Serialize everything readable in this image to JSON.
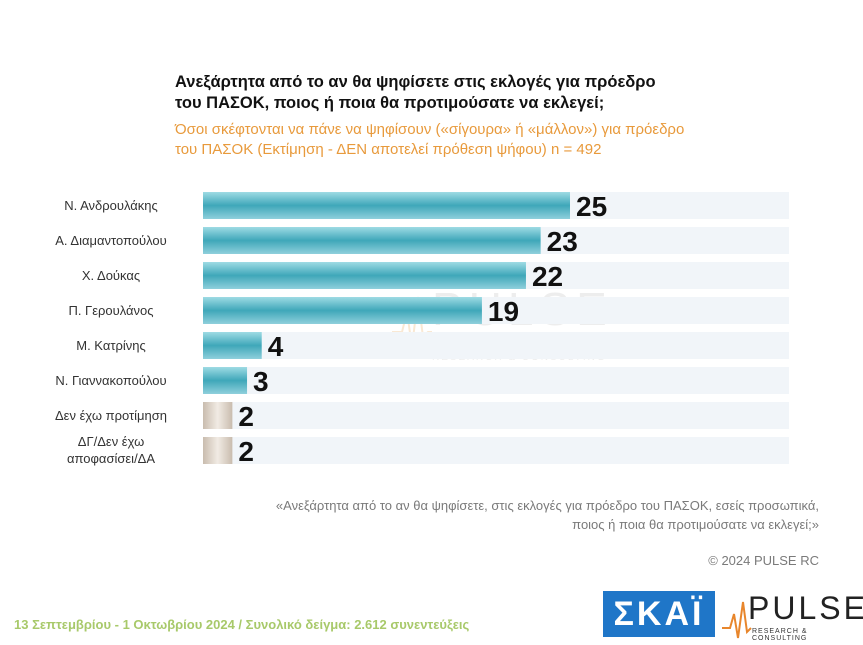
{
  "title": "Ανεξάρτητα από το αν θα ψηφίσετε στις εκλογές για πρόεδρο\nτου ΠΑΣΟΚ, ποιος ή ποια θα προτιμούσατε να εκλεγεί;",
  "subtitle": "Όσοι σκέφτονται να πάνε να ψηφίσουν («σίγουρα» ή «μάλλον») για πρόεδρο\nτου ΠΑΣΟΚ   (Εκτίμηση - ΔΕΝ αποτελεί πρόθεση ψήφου)    n = 492",
  "watermark": {
    "word": "PULSE",
    "sub": "RESEARCH & CONSULTING"
  },
  "chart_data": {
    "type": "bar",
    "orientation": "horizontal",
    "categories": [
      "Ν. Ανδρουλάκης",
      "Α. Διαμαντοπούλου",
      "Χ. Δούκας",
      "Π. Γερουλάνος",
      "Μ. Κατρίνης",
      "Ν. Γιαννακοπούλου",
      "Δεν έχω προτίμηση",
      "ΔΓ/Δεν έχω\nαποφασίσει/ΔΑ"
    ],
    "values": [
      25,
      23,
      22,
      19,
      4,
      3,
      2,
      2
    ],
    "value_labels": [
      "25",
      "23",
      "22",
      "19",
      "4",
      "3",
      "2",
      "2"
    ],
    "xlim": [
      0,
      100
    ],
    "colors": {
      "candidate_bar": "#4fb3c4",
      "other_bar": "#d9cfc3",
      "track": "#f1f5f9"
    }
  },
  "quote": "«Ανεξάρτητα από το αν θα ψηφίσετε, στις εκλογές για πρόεδρο του ΠΑΣΟΚ, εσείς προσωπικά,\nποιος ή ποια θα προτιμούσατε να εκλεγεί;»",
  "copyright": "© 2024 PULSE RC",
  "footer": "13 Σεπτεμβρίου - 1 Οκτωβρίου 2024  /  Συνολικό δείγμα:  2.612 συνεντεύξεις",
  "logos": {
    "skai": "ΣΚΑΪ",
    "pulse": "PULSE",
    "pulse_sub": "RESEARCH & CONSULTING"
  }
}
